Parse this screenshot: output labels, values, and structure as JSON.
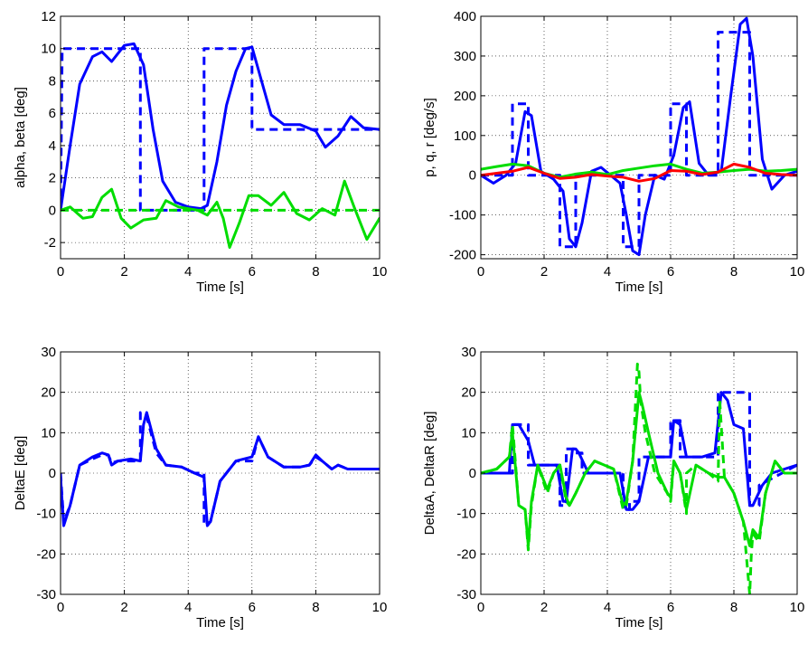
{
  "chart_data": [
    {
      "type": "line",
      "xlabel": "Time [s]",
      "ylabel": "alpha, beta [deg]",
      "xlim": [
        0,
        10
      ],
      "ylim": [
        -3,
        12
      ],
      "xticks": [
        0,
        2,
        4,
        6,
        8,
        10
      ],
      "yticks": [
        -2,
        0,
        2,
        4,
        6,
        8,
        10,
        12
      ],
      "grid": true,
      "series": [
        {
          "color": "#0000ff",
          "style": "dashed",
          "x": [
            0,
            0.05,
            2.5,
            2.5,
            4.5,
            4.5,
            6,
            6,
            10
          ],
          "y": [
            0,
            10,
            10,
            0,
            0,
            10,
            10,
            5,
            5
          ]
        },
        {
          "color": "#0000ff",
          "style": "solid",
          "x": [
            0,
            0.3,
            0.6,
            1,
            1.3,
            1.6,
            2,
            2.3,
            2.6,
            2.9,
            3.2,
            3.6,
            4,
            4.4,
            4.6,
            4.9,
            5.2,
            5.5,
            5.8,
            6,
            6.3,
            6.6,
            7,
            7.5,
            8,
            8.3,
            8.7,
            9.1,
            9.5,
            10
          ],
          "y": [
            0,
            4,
            7.8,
            9.5,
            9.8,
            9.2,
            10.2,
            10.3,
            9,
            5,
            1.8,
            0.5,
            0.2,
            0.1,
            0.3,
            3,
            6.5,
            8.6,
            10,
            10.1,
            8,
            5.9,
            5.3,
            5.3,
            4.9,
            3.9,
            4.6,
            5.8,
            5.1,
            5
          ]
        },
        {
          "color": "#00dd00",
          "style": "dashed",
          "x": [
            0,
            10
          ],
          "y": [
            0,
            0
          ]
        },
        {
          "color": "#00dd00",
          "style": "solid",
          "x": [
            0,
            0.3,
            0.7,
            1,
            1.3,
            1.6,
            1.9,
            2.2,
            2.6,
            3,
            3.3,
            3.7,
            4,
            4.3,
            4.6,
            4.9,
            5.1,
            5.3,
            5.6,
            5.9,
            6.2,
            6.6,
            7,
            7.4,
            7.8,
            8.2,
            8.6,
            8.9,
            9.2,
            9.6,
            10
          ],
          "y": [
            0,
            0.2,
            -0.5,
            -0.4,
            0.8,
            1.3,
            -0.5,
            -1.1,
            -0.6,
            -0.5,
            0.6,
            0.2,
            0.1,
            0,
            -0.3,
            0.5,
            -0.5,
            -2.3,
            -0.8,
            0.9,
            0.9,
            0.3,
            1.1,
            -0.2,
            -0.6,
            0.1,
            -0.3,
            1.8,
            0.2,
            -1.8,
            -0.5
          ]
        }
      ]
    },
    {
      "type": "line",
      "xlabel": "Time [s]",
      "ylabel": "p, q, r [deg/s]",
      "xlim": [
        0,
        10
      ],
      "ylim": [
        -210,
        400
      ],
      "xticks": [
        0,
        2,
        4,
        6,
        8,
        10
      ],
      "yticks": [
        -200,
        -100,
        0,
        100,
        200,
        300,
        400
      ],
      "grid": true,
      "series": [
        {
          "color": "#0000ff",
          "style": "dashed",
          "x": [
            0,
            1,
            1,
            1.5,
            1.5,
            2.5,
            2.5,
            3,
            3,
            4.5,
            4.5,
            5,
            5,
            6,
            6,
            6.5,
            6.5,
            7.5,
            7.5,
            8.5,
            8.5,
            10
          ],
          "y": [
            0,
            0,
            180,
            180,
            0,
            0,
            -180,
            -180,
            0,
            0,
            -180,
            -180,
            0,
            0,
            180,
            180,
            0,
            0,
            360,
            360,
            0,
            0
          ]
        },
        {
          "color": "#0000ff",
          "style": "solid",
          "x": [
            0,
            0.4,
            0.8,
            1.1,
            1.4,
            1.6,
            1.9,
            2.3,
            2.6,
            2.8,
            3,
            3.2,
            3.5,
            3.8,
            4.1,
            4.4,
            4.6,
            4.8,
            5,
            5.2,
            5.5,
            5.8,
            6.1,
            6.4,
            6.6,
            6.9,
            7.2,
            7.6,
            7.9,
            8.2,
            8.4,
            8.6,
            8.9,
            9.2,
            9.6,
            10
          ],
          "y": [
            0,
            -20,
            0,
            30,
            160,
            150,
            10,
            -10,
            -40,
            -160,
            -180,
            -120,
            10,
            20,
            0,
            -20,
            -100,
            -190,
            -200,
            -100,
            0,
            -10,
            50,
            170,
            185,
            30,
            0,
            10,
            200,
            380,
            395,
            300,
            40,
            -35,
            0,
            10
          ]
        },
        {
          "color": "#00dd00",
          "style": "solid",
          "x": [
            0,
            0.5,
            1,
            1.5,
            2,
            2.5,
            3,
            3.5,
            4,
            4.5,
            5,
            5.5,
            6,
            6.5,
            7,
            7.5,
            8,
            8.5,
            9,
            9.5,
            10
          ],
          "y": [
            15,
            22,
            28,
            24,
            5,
            -5,
            3,
            8,
            2,
            12,
            18,
            24,
            28,
            15,
            5,
            8,
            12,
            15,
            10,
            12,
            15
          ]
        },
        {
          "color": "#ff0000",
          "style": "solid",
          "x": [
            0,
            0.5,
            1,
            1.5,
            2,
            2.5,
            3,
            3.5,
            4,
            4.5,
            5,
            5.5,
            6,
            6.5,
            7,
            7.5,
            8,
            8.5,
            9,
            9.5,
            10
          ],
          "y": [
            0,
            5,
            10,
            20,
            5,
            -8,
            -5,
            2,
            -2,
            -5,
            -15,
            -8,
            12,
            10,
            2,
            8,
            28,
            20,
            5,
            2,
            0
          ]
        }
      ]
    },
    {
      "type": "line",
      "xlabel": "Time [s]",
      "ylabel": "DeltaE [deg]",
      "xlim": [
        0,
        10
      ],
      "ylim": [
        -30,
        30
      ],
      "xticks": [
        0,
        2,
        4,
        6,
        8,
        10
      ],
      "yticks": [
        -30,
        -20,
        -10,
        0,
        10,
        20,
        30
      ],
      "grid": true,
      "series": [
        {
          "color": "#0000ff",
          "style": "dashed",
          "x": [
            0,
            0.1,
            0.3,
            0.6,
            1,
            1.3,
            1.5,
            1.6,
            1.8,
            2.2,
            2.5,
            2.5,
            2.7,
            3,
            3.3,
            3.8,
            4.2,
            4.5,
            4.5,
            4.7,
            5,
            5.5,
            6,
            6.2,
            6.5,
            7,
            7.5,
            7.8,
            8,
            8.2,
            8.5,
            8.7,
            9,
            9.5,
            10
          ],
          "y": [
            0,
            -12,
            -8,
            2,
            3.5,
            4.5,
            4.5,
            2.5,
            3,
            3,
            3,
            15,
            14,
            5,
            2,
            1.5,
            0,
            0,
            -13,
            -12,
            -2,
            3,
            3,
            9,
            4,
            1.5,
            1.5,
            2,
            4,
            3,
            1,
            2,
            1,
            1,
            1
          ]
        },
        {
          "color": "#0000ff",
          "style": "solid",
          "x": [
            0,
            0.1,
            0.3,
            0.6,
            1,
            1.3,
            1.5,
            1.6,
            1.8,
            2.2,
            2.5,
            2.6,
            2.7,
            3,
            3.3,
            3.8,
            4.2,
            4.5,
            4.6,
            4.7,
            5,
            5.5,
            6,
            6.2,
            6.5,
            7,
            7.5,
            7.8,
            8,
            8.2,
            8.5,
            8.7,
            9,
            9.5,
            10
          ],
          "y": [
            -1,
            -13,
            -8,
            2,
            4,
            5,
            4.5,
            2,
            3,
            3.5,
            3,
            12,
            15,
            6,
            2,
            1.5,
            0,
            -1,
            -13,
            -12,
            -2,
            3,
            4,
            9,
            4,
            1.5,
            1.5,
            2,
            4.5,
            3,
            1,
            2,
            1,
            1,
            1
          ]
        }
      ]
    },
    {
      "type": "line",
      "xlabel": "Time [s]",
      "ylabel": "DeltaA, DeltaR [deg]",
      "xlim": [
        0,
        10
      ],
      "ylim": [
        -30,
        30
      ],
      "xticks": [
        0,
        2,
        4,
        6,
        8,
        10
      ],
      "yticks": [
        -30,
        -20,
        -10,
        0,
        10,
        20,
        30
      ],
      "grid": true,
      "series": [
        {
          "color": "#0000ff",
          "style": "dashed",
          "x": [
            0,
            1,
            1,
            1.5,
            1.5,
            2.5,
            2.5,
            2.7,
            2.7,
            3,
            3,
            3.2,
            3.2,
            4.5,
            4.5,
            4.7,
            4.7,
            5,
            5,
            6,
            6,
            6.3,
            6.3,
            7.5,
            7.5,
            8.5,
            8.5,
            8.8,
            8.8,
            10
          ],
          "y": [
            0,
            0,
            12,
            12,
            2,
            2,
            -8,
            -8,
            6,
            6,
            5,
            5,
            0,
            0,
            -9,
            -9,
            -7,
            -7,
            4,
            4,
            13,
            13,
            4,
            4,
            20,
            20,
            -8,
            -8,
            -3,
            2
          ]
        },
        {
          "color": "#0000ff",
          "style": "solid",
          "x": [
            0,
            0.9,
            1,
            1.2,
            1.5,
            1.7,
            2,
            2.4,
            2.6,
            2.7,
            2.9,
            3,
            3.1,
            3.4,
            4,
            4.4,
            4.6,
            4.8,
            5,
            5.3,
            5.8,
            6,
            6.1,
            6.3,
            6.5,
            7,
            7.4,
            7.6,
            7.8,
            8,
            8.3,
            8.5,
            8.6,
            8.9,
            9.2,
            9.6,
            10
          ],
          "y": [
            0,
            0,
            12,
            12,
            8,
            2,
            2,
            2,
            -7,
            -7,
            6,
            6,
            5,
            0,
            0,
            0,
            -9,
            -9,
            -7,
            4,
            4,
            4,
            13,
            12,
            4,
            4,
            5,
            20,
            18,
            12,
            11,
            -8,
            -8,
            -3,
            0,
            1,
            2
          ]
        },
        {
          "color": "#00dd00",
          "style": "dashed",
          "x": [
            0,
            0.5,
            0.9,
            1,
            1.2,
            1.4,
            1.5,
            1.6,
            1.8,
            2.1,
            2.3,
            2.5,
            2.7,
            2.8,
            3,
            3.3,
            3.6,
            4.2,
            4.5,
            4.6,
            4.8,
            4.95,
            5,
            5.05,
            5.2,
            5.5,
            5.9,
            6,
            6.1,
            6.3,
            6.5,
            6.5,
            6.8,
            7.2,
            7.5,
            7.55,
            7.7,
            8,
            8.3,
            8.5,
            8.55,
            8.6,
            8.8,
            9,
            9.3,
            9.6,
            10
          ],
          "y": [
            0,
            1,
            4,
            12,
            -8,
            -9,
            -19,
            -8,
            2,
            -5,
            0,
            2,
            -7,
            -8,
            -5,
            0,
            3,
            1,
            -9,
            -8,
            3,
            27,
            25,
            18,
            10,
            0,
            -5,
            -7,
            3,
            0,
            -10,
            0,
            2,
            0,
            -2,
            18,
            -1,
            -5,
            -12,
            -30,
            -20,
            -15,
            -17,
            -5,
            3,
            0,
            0
          ]
        },
        {
          "color": "#00dd00",
          "style": "solid",
          "x": [
            0,
            0.5,
            0.9,
            1,
            1.2,
            1.4,
            1.5,
            1.6,
            1.8,
            2.1,
            2.3,
            2.5,
            2.7,
            2.8,
            3,
            3.3,
            3.6,
            4.2,
            4.5,
            4.6,
            4.8,
            5,
            5.1,
            5.3,
            5.6,
            5.9,
            6,
            6.1,
            6.3,
            6.5,
            6.8,
            7.2,
            7.5,
            7.7,
            8,
            8.3,
            8.5,
            8.6,
            8.8,
            9,
            9.3,
            9.6,
            10
          ],
          "y": [
            0,
            1,
            4,
            10,
            -8,
            -9,
            -18,
            -7,
            2,
            -4,
            0,
            2,
            -6,
            -8,
            -5,
            0,
            3,
            1,
            -8,
            -7,
            3,
            20,
            17,
            10,
            0,
            -5,
            -6,
            3,
            0,
            -9,
            2,
            0,
            -1,
            -1,
            -5,
            -12,
            -18,
            -14,
            -16,
            -5,
            3,
            0,
            0
          ]
        }
      ]
    }
  ]
}
